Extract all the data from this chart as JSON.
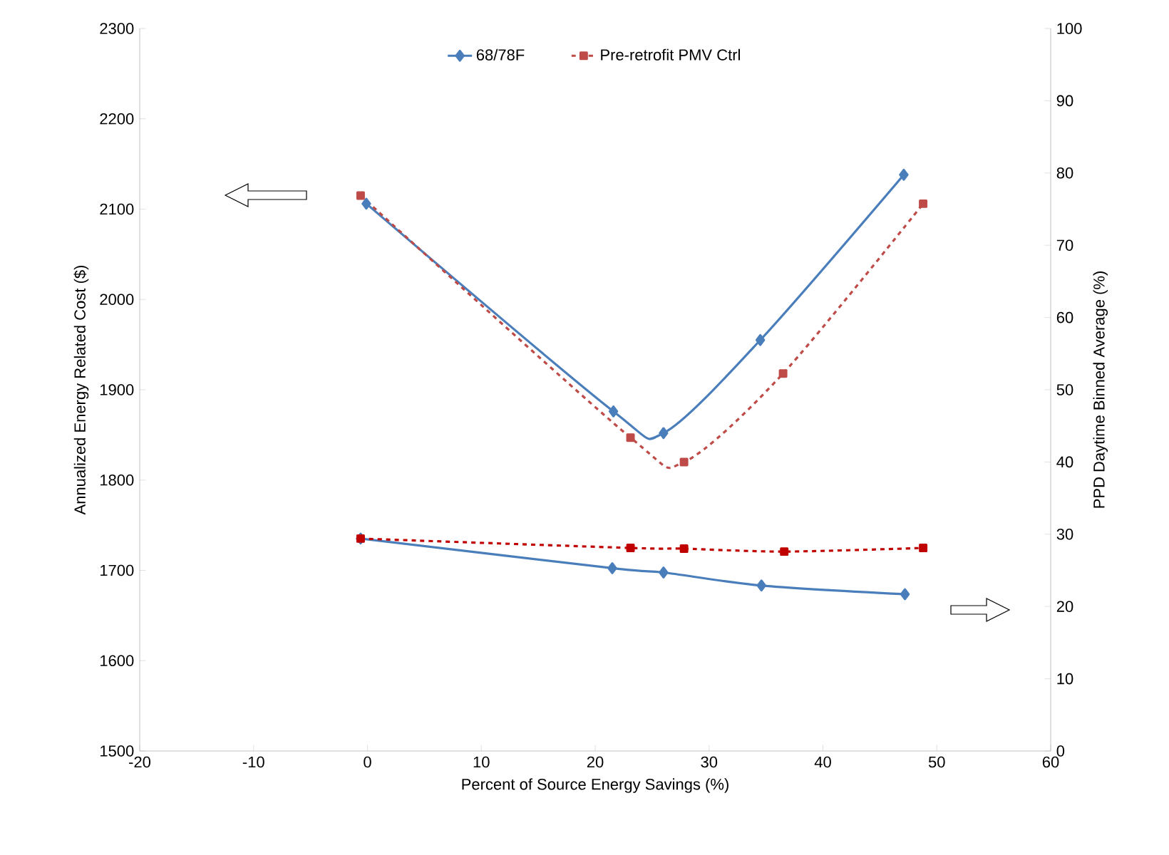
{
  "chart_data": {
    "type": "line",
    "xlabel": "Percent of Source Energy Savings (%)",
    "ylabel": "Annualized Energy Related Cost ($)",
    "y2label": "PPD Daytime Binned Average (%)",
    "xlim": [
      -20,
      60
    ],
    "xticks": [
      -20,
      -10,
      0,
      10,
      20,
      30,
      40,
      50,
      60
    ],
    "ylim": [
      1500,
      2300
    ],
    "yticks": [
      1500,
      1600,
      1700,
      1800,
      1900,
      2000,
      2100,
      2200,
      2300
    ],
    "y2lim": [
      0,
      100
    ],
    "y2ticks": [
      0,
      10,
      20,
      30,
      40,
      50,
      60,
      70,
      80,
      90,
      100
    ],
    "legend": "top",
    "series": [
      {
        "name": "68/78F",
        "color": "#4a7ebb",
        "marker": "diamond",
        "line_style": "solid",
        "x": [
          -0.1,
          21.6,
          26,
          34.5,
          47.1
        ],
        "values": [
          2106,
          1876,
          1852,
          1955,
          2138
        ]
      },
      {
        "name": "Pre-retrofit PMV Ctrl",
        "color": "#be4b48",
        "marker": "square",
        "line_style": "dashed",
        "x": [
          -0.6,
          23.1,
          27.8,
          36.5,
          48.8
        ],
        "values": [
          2115,
          1847,
          1820,
          1918,
          2106
        ]
      },
      {
        "color": "#4a7ebb",
        "marker": "diamond",
        "line_style": "solid",
        "axis": "y2",
        "x": [
          -0.6,
          21.5,
          26,
          34.6,
          47.2
        ],
        "values": [
          29.4,
          25.3,
          24.7,
          22.9,
          21.7
        ]
      },
      {
        "color": "#c00000",
        "marker": "square",
        "line_style": "dashed",
        "axis": "y2",
        "x": [
          -0.6,
          23.1,
          27.8,
          36.6,
          48.8
        ],
        "values": [
          29.4,
          28.1,
          28.0,
          27.6,
          28.1
        ]
      }
    ]
  }
}
